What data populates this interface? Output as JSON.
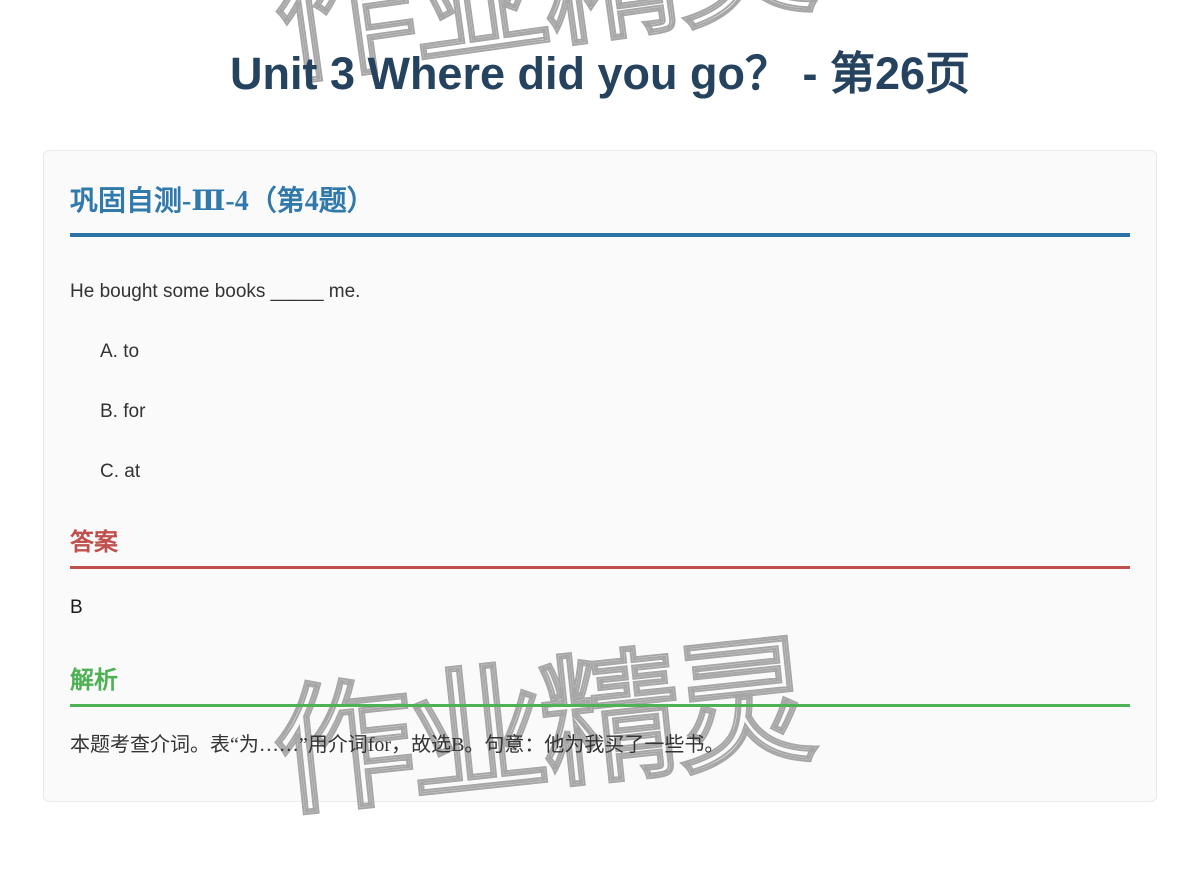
{
  "page": {
    "title": "Unit 3 Where did you go？ - 第26页",
    "watermark": "作业精灵"
  },
  "card": {
    "section_title": "巩固自测-Ⅲ-4（第4题）",
    "question": {
      "stem": "He bought some books _____ me.",
      "options": [
        {
          "label": "A. to"
        },
        {
          "label": "B. for"
        },
        {
          "label": "C. at"
        }
      ]
    },
    "answer": {
      "heading": "答案",
      "value": "B"
    },
    "analysis": {
      "heading": "解析",
      "text": "本题考查介词。表“为……”用介词for，故选B。句意：他为我买了一些书。"
    }
  },
  "colors": {
    "title_navy": "#25425f",
    "section_blue": "#3279ab",
    "divider_blue": "#2d74a6",
    "answer_red": "#c0504d",
    "analysis_green": "#4eb154",
    "card_background": "#fafafa",
    "card_border": "#e9e9e9",
    "watermark_gray": "#a6a6a6"
  }
}
